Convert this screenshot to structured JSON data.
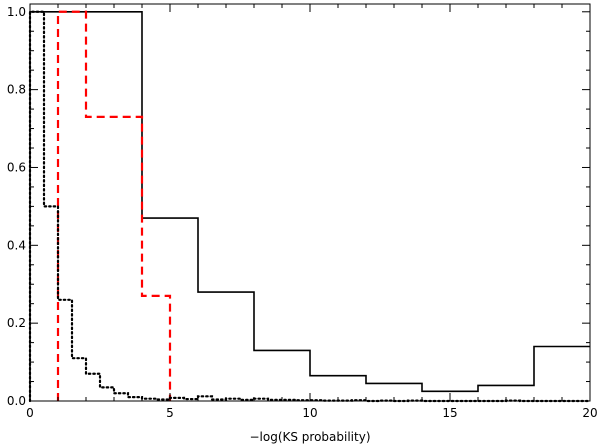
{
  "chart_data": {
    "type": "line",
    "title": "",
    "xlabel": "−log(KS probability)",
    "ylabel": "",
    "xlim": [
      0,
      20
    ],
    "ylim": [
      0,
      1.02
    ],
    "x_ticks": [
      0,
      5,
      10,
      15,
      20
    ],
    "x_tick_labels": [
      "0",
      "5",
      "10",
      "15",
      "20"
    ],
    "y_ticks": [
      0,
      0.2,
      0.4,
      0.6,
      0.8,
      1.0
    ],
    "y_tick_labels": [
      "0.0",
      "0.2",
      "0.4",
      "0.6",
      "0.8",
      "1.0"
    ],
    "grid": false,
    "series": [
      {
        "style": "solid",
        "color": "#000000",
        "step_edges": [
          0,
          4,
          6,
          8,
          10,
          12,
          14,
          16,
          18,
          20
        ],
        "values": [
          1.0,
          0.47,
          0.28,
          0.13,
          0.065,
          0.045,
          0.025,
          0.04,
          0.14
        ]
      },
      {
        "style": "dashed",
        "color": "#ff0000",
        "step_edges": [
          1,
          2,
          4,
          5
        ],
        "values": [
          1.0,
          0.73,
          0.27
        ],
        "drop_to_zero_at_end": true
      },
      {
        "style": "dotted",
        "color": "#000000",
        "step_edges": [
          0,
          0.5,
          1.0,
          1.5,
          2.0,
          2.5,
          3.0,
          3.5,
          4.0,
          4.5,
          5.0,
          5.5,
          6.0,
          6.5,
          7.0,
          7.5,
          8.0,
          8.5,
          9.0,
          9.5,
          10.0,
          10.5,
          11.0,
          11.5,
          12.0,
          12.5,
          13.0,
          13.5,
          14.0,
          14.5,
          15.0,
          15.5,
          16.0,
          16.5,
          17.0,
          17.5,
          18.0,
          18.5,
          19.0,
          19.5,
          20.0
        ],
        "values": [
          1.0,
          0.5,
          0.26,
          0.11,
          0.07,
          0.035,
          0.02,
          0.01,
          0.006,
          0.004,
          0.008,
          0.005,
          0.012,
          0.004,
          0.006,
          0.003,
          0.006,
          0.003,
          0.003,
          0.002,
          0.002,
          0.001,
          0.001,
          0.002,
          0.0,
          0.001,
          0.0,
          0.001,
          0.0,
          0.0,
          0.0,
          0.0,
          0.0,
          0.0,
          0.001,
          0.0,
          0.0,
          0.0,
          0.0,
          0.0
        ]
      }
    ]
  }
}
